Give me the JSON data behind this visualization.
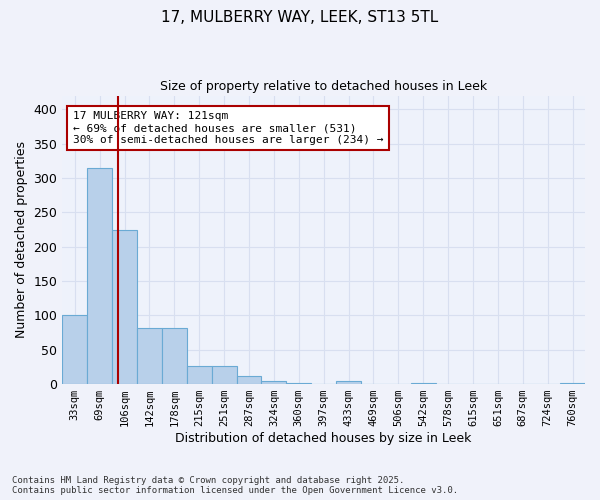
{
  "title1": "17, MULBERRY WAY, LEEK, ST13 5TL",
  "title2": "Size of property relative to detached houses in Leek",
  "xlabel": "Distribution of detached houses by size in Leek",
  "ylabel": "Number of detached properties",
  "categories": [
    "33sqm",
    "69sqm",
    "106sqm",
    "142sqm",
    "178sqm",
    "215sqm",
    "251sqm",
    "287sqm",
    "324sqm",
    "360sqm",
    "397sqm",
    "433sqm",
    "469sqm",
    "506sqm",
    "542sqm",
    "578sqm",
    "615sqm",
    "651sqm",
    "687sqm",
    "724sqm",
    "760sqm"
  ],
  "values": [
    100,
    315,
    225,
    82,
    82,
    27,
    27,
    12,
    5,
    2,
    0,
    4,
    0,
    0,
    2,
    0,
    0,
    0,
    0,
    0,
    2
  ],
  "bar_color": "#b8d0ea",
  "bar_edge_color": "#6aaad4",
  "background_color": "#eef2fb",
  "grid_color": "#d8dff0",
  "redline_x": 1.75,
  "annotation_text": "17 MULBERRY WAY: 121sqm\n← 69% of detached houses are smaller (531)\n30% of semi-detached houses are larger (234) →",
  "annotation_box_color": "#ffffff",
  "annotation_box_edge": "#aa0000",
  "ylim": [
    0,
    420
  ],
  "yticks": [
    0,
    50,
    100,
    150,
    200,
    250,
    300,
    350,
    400
  ],
  "footer1": "Contains HM Land Registry data © Crown copyright and database right 2025.",
  "footer2": "Contains public sector information licensed under the Open Government Licence v3.0."
}
